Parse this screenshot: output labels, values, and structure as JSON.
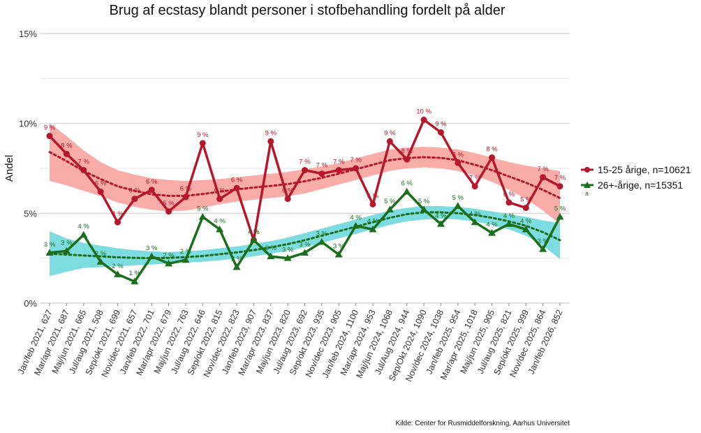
{
  "chart_data": {
    "type": "line",
    "title": "Brug af ecstasy blandt personer i stofbehandling fordelt på alder",
    "ylabel": "Andel",
    "xlabel": "",
    "ylim": [
      0,
      15
    ],
    "yticks": [
      0,
      5,
      10,
      15
    ],
    "ytick_labels": [
      "0%",
      "5%",
      "10%",
      "15%"
    ],
    "grid": true,
    "caption": "Kilde: Center for Rusmiddelforskning, Aarhus Universitet",
    "legend_position": "right",
    "categories": [
      "Jan/feb 2021, 627",
      "Mar/apr 2021, 687",
      "Maj/jun 2021, 665",
      "Jul/aug 2021, 508",
      "Sep/okt 2021, 699",
      "Nov/dec 2021, 657",
      "Jan/feb 2022, 701",
      "Mar/apr 2022, 679",
      "Maj/jun 2022, 763",
      "Jul/aug 2022, 646",
      "Sep/okt 2022, 815",
      "Nov/dec 2022, 823",
      "Jan/feb 2023, 907",
      "Mar/apr 2023, 837",
      "Maj/jun 2023, 820",
      "Jul/aug 2023, 692",
      "Sep/okt 2023, 935",
      "Nov/dec 2023, 905",
      "Jan/feb 2024, 1100",
      "Mar/apr 2024, 953",
      "Maj/jun 2024, 1068",
      "Jul/Aug 2024, 944",
      "Sep/Okt 2024, 1090",
      "Nov/dec 2024, 1038",
      "Jan/feb 2025, 954",
      "Mar/apr 2025, 1018",
      "Maj/jun 2025, 905",
      "Jul/aug 2025, 821",
      "Sep/okt 2025, 999",
      "Nov/dec 2025, 864",
      "Jan/feb 2026, 852"
    ],
    "series": [
      {
        "name": "15-25 årige, n=10621",
        "color": "#b5182b",
        "band_color": "#f9a3a0",
        "marker": "circle",
        "values": [
          9.3,
          8.3,
          7.4,
          6.2,
          4.5,
          5.8,
          6.3,
          5.1,
          5.9,
          8.9,
          5.8,
          6.4,
          3.5,
          9.0,
          5.8,
          7.4,
          7.2,
          7.4,
          7.5,
          5.5,
          9.0,
          8.0,
          10.2,
          9.5,
          7.8,
          6.5,
          8.1,
          5.6,
          5.3,
          7.0,
          6.5
        ],
        "labels": [
          "9 %",
          "8 %",
          "7 %",
          "6 %",
          "4 %",
          "6 %",
          "6 %",
          "5 %",
          "6 %",
          "9 %",
          "6 %",
          "6 %",
          "4 %",
          "9 %",
          "6 %",
          "7 %",
          "7 %",
          "7 %",
          "7 %",
          "6 %",
          "9 %",
          "8 %",
          "10 %",
          "9 %",
          "8 %",
          "7 %",
          "8 %",
          "6 %",
          "5 %",
          "7 %",
          "7 %"
        ],
        "trend": [
          8.4,
          7.9,
          7.35,
          6.9,
          6.5,
          6.25,
          6.05,
          5.97,
          5.97,
          6.07,
          6.2,
          6.33,
          6.43,
          6.52,
          6.62,
          6.78,
          6.97,
          7.2,
          7.45,
          7.7,
          7.95,
          8.07,
          8.12,
          8.08,
          7.95,
          7.7,
          7.4,
          7.05,
          6.7,
          6.3,
          5.85
        ],
        "band_lower": [
          6.8,
          6.55,
          6.25,
          5.95,
          5.6,
          5.35,
          5.2,
          5.1,
          5.15,
          5.3,
          5.5,
          5.65,
          5.75,
          5.85,
          5.95,
          6.1,
          6.35,
          6.6,
          6.85,
          7.1,
          7.35,
          7.5,
          7.55,
          7.5,
          7.35,
          7.1,
          6.75,
          6.3,
          5.8,
          5.15,
          4.4
        ],
        "band_upper": [
          10.0,
          9.3,
          8.5,
          7.85,
          7.4,
          7.15,
          6.95,
          6.85,
          6.8,
          6.85,
          6.9,
          7.0,
          7.1,
          7.2,
          7.3,
          7.45,
          7.6,
          7.8,
          8.05,
          8.3,
          8.55,
          8.65,
          8.7,
          8.65,
          8.55,
          8.35,
          8.1,
          7.85,
          7.65,
          7.5,
          7.35
        ]
      },
      {
        "name": "26+-årige, n=15351",
        "color": "#1a6e1c",
        "band_color": "#6fd8dc",
        "marker": "triangle",
        "values": [
          2.8,
          2.9,
          3.8,
          2.3,
          1.6,
          1.2,
          2.6,
          2.2,
          2.4,
          4.8,
          4.1,
          2.0,
          3.5,
          2.6,
          2.5,
          2.8,
          3.4,
          2.7,
          4.3,
          4.1,
          5.2,
          6.2,
          5.2,
          4.4,
          5.4,
          4.5,
          3.9,
          4.4,
          4.1,
          3.0,
          4.8
        ],
        "labels": [
          "3 %",
          "3 %",
          "4 %",
          "2 %",
          "2 %",
          "1 %",
          "3 %",
          "2 %",
          "2 %",
          "5 %",
          "4 %",
          "2 %",
          "4 %",
          "3 %",
          "3 %",
          "3 %",
          "3 %",
          "3 %",
          "4 %",
          "4 %",
          "5 %",
          "6 %",
          "5 %",
          "4 %",
          "5 %",
          "4 %",
          "4 %",
          "4 %",
          "4 %",
          "3 %",
          "5 %"
        ],
        "trend": [
          2.75,
          2.7,
          2.65,
          2.6,
          2.55,
          2.52,
          2.5,
          2.52,
          2.56,
          2.62,
          2.72,
          2.82,
          2.95,
          3.1,
          3.28,
          3.5,
          3.75,
          4.0,
          4.25,
          4.5,
          4.75,
          4.95,
          5.05,
          5.05,
          5.0,
          4.9,
          4.75,
          4.55,
          4.3,
          3.95,
          3.5
        ],
        "band_lower": [
          1.5,
          1.75,
          1.95,
          2.0,
          2.05,
          2.1,
          2.15,
          2.2,
          2.25,
          2.3,
          2.38,
          2.48,
          2.6,
          2.75,
          2.9,
          3.1,
          3.35,
          3.6,
          3.85,
          4.1,
          4.35,
          4.55,
          4.65,
          4.7,
          4.65,
          4.55,
          4.35,
          4.1,
          3.75,
          3.2,
          2.45
        ],
        "band_upper": [
          4.0,
          3.6,
          3.35,
          3.2,
          3.05,
          2.95,
          2.88,
          2.85,
          2.88,
          2.95,
          3.05,
          3.15,
          3.3,
          3.45,
          3.65,
          3.9,
          4.15,
          4.4,
          4.65,
          4.9,
          5.15,
          5.3,
          5.4,
          5.4,
          5.35,
          5.25,
          5.1,
          4.95,
          4.8,
          4.6,
          4.45
        ]
      }
    ]
  },
  "legend": {
    "items": [
      {
        "label": "15-25 årige, n=10621"
      },
      {
        "label": "26+-årige, n=15351"
      }
    ],
    "sub": "a"
  }
}
